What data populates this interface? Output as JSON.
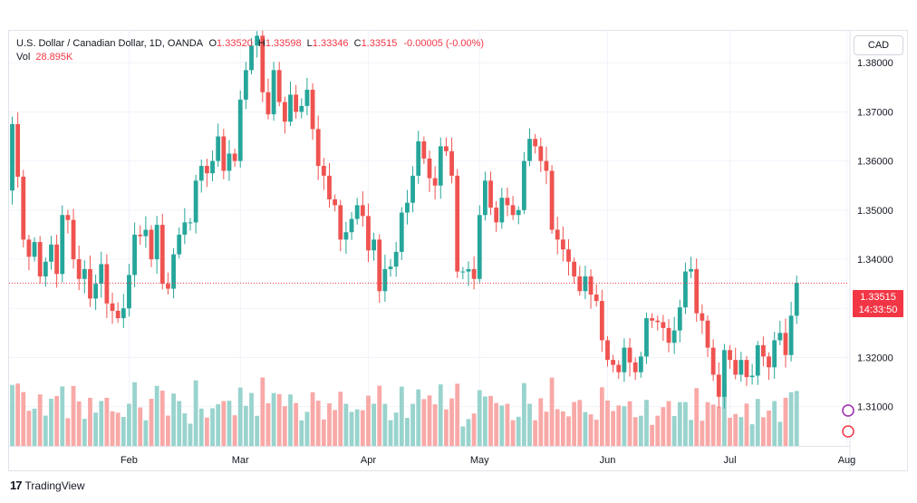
{
  "legend": {
    "symbol": "U.S. Dollar / Canadian Dollar, 1D, OANDA",
    "o_label": "O",
    "o_value": "1.33520",
    "h_label": "H",
    "h_value": "1.33598",
    "l_label": "L",
    "l_value": "1.33346",
    "c_label": "C",
    "c_value": "1.33515",
    "change": "-0.00005 (-0.00%)",
    "vol_label": "Vol",
    "vol_value": "28.895K"
  },
  "currency_button": "CAD",
  "last_price": {
    "price": "1.33515",
    "countdown": "14:33:50",
    "value": 1.33515
  },
  "brand": {
    "name": "TradingView",
    "logo": "17"
  },
  "colors": {
    "up": "#26a69a",
    "down": "#ef5350",
    "up_vol": "#99d3cd",
    "down_vol": "#f8a9a7",
    "grid": "#f0f3fa",
    "text": "#131722"
  },
  "chart_data": {
    "type": "candlestick",
    "title": "U.S. Dollar / Canadian Dollar, 1D, OANDA",
    "ylim": [
      1.302,
      1.3865
    ],
    "y_ticks": [
      {
        "label": "1.38000",
        "value": 1.38
      },
      {
        "label": "1.37000",
        "value": 1.37
      },
      {
        "label": "1.36000",
        "value": 1.36
      },
      {
        "label": "1.35000",
        "value": 1.35
      },
      {
        "label": "1.34000",
        "value": 1.34
      },
      {
        "label": "1.33000",
        "value": 1.33
      },
      {
        "label": "1.32000",
        "value": 1.32
      },
      {
        "label": "1.31000",
        "value": 1.31
      }
    ],
    "x_ticks": [
      {
        "label": "Feb",
        "index": 21
      },
      {
        "label": "Mar",
        "index": 41
      },
      {
        "label": "Apr",
        "index": 64
      },
      {
        "label": "May",
        "index": 84
      },
      {
        "label": "Jun",
        "index": 107
      },
      {
        "label": "Jul",
        "index": 129
      },
      {
        "label": "Aug",
        "index": 150
      }
    ],
    "closes": [
      1.3675,
      1.3568,
      1.344,
      1.3405,
      1.3435,
      1.3365,
      1.3395,
      1.343,
      1.337,
      1.349,
      1.348,
      1.34,
      1.336,
      1.338,
      1.332,
      1.335,
      1.339,
      1.331,
      1.3295,
      1.328,
      1.33,
      1.3368,
      1.345,
      1.3447,
      1.346,
      1.34,
      1.347,
      1.335,
      1.334,
      1.341,
      1.345,
      1.3475,
      1.3475,
      1.356,
      1.359,
      1.3575,
      1.36,
      1.365,
      1.358,
      1.3615,
      1.36,
      1.3725,
      1.3785,
      1.3835,
      1.3855,
      1.374,
      1.3695,
      1.3785,
      1.372,
      1.368,
      1.3735,
      1.37,
      1.3712,
      1.3745,
      1.3665,
      1.359,
      1.357,
      1.3522,
      1.351,
      1.344,
      1.3455,
      1.3482,
      1.351,
      1.3488,
      1.3418,
      1.344,
      1.3335,
      1.338,
      1.3385,
      1.3415,
      1.3495,
      1.3515,
      1.357,
      1.364,
      1.3605,
      1.3565,
      1.355,
      1.363,
      1.362,
      1.357,
      1.3375,
      1.3375,
      1.338,
      1.336,
      1.349,
      1.356,
      1.3505,
      1.3475,
      1.3525,
      1.351,
      1.349,
      1.35,
      1.36,
      1.3645,
      1.363,
      1.36,
      1.358,
      1.346,
      1.344,
      1.342,
      1.3395,
      1.3365,
      1.3335,
      1.3365,
      1.3328,
      1.3315,
      1.3235,
      1.3195,
      1.3185,
      1.317,
      1.322,
      1.319,
      1.317,
      1.3202,
      1.328,
      1.3275,
      1.3272,
      1.326,
      1.323,
      1.3255,
      1.3302,
      1.3375,
      1.338,
      1.329,
      1.3275,
      1.322,
      1.3165,
      1.312,
      1.3215,
      1.3195,
      1.3165,
      1.3195,
      1.316,
      1.3163,
      1.3225,
      1.3202,
      1.318,
      1.3235,
      1.325,
      1.3205,
      1.3285,
      1.3352
    ],
    "volume": {
      "label": "Vol",
      "last": "28.895K"
    }
  }
}
